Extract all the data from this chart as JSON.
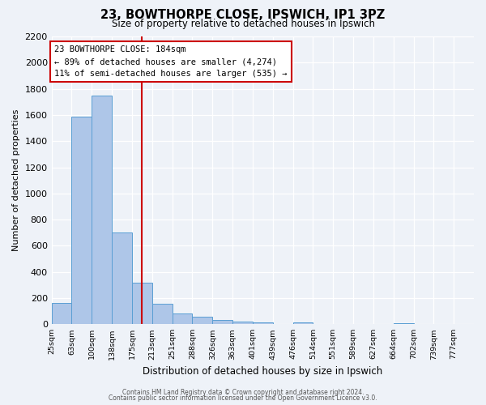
{
  "title": "23, BOWTHORPE CLOSE, IPSWICH, IP1 3PZ",
  "subtitle": "Size of property relative to detached houses in Ipswich",
  "xlabel": "Distribution of detached houses by size in Ipswich",
  "ylabel": "Number of detached properties",
  "bar_labels": [
    "25sqm",
    "63sqm",
    "100sqm",
    "138sqm",
    "175sqm",
    "213sqm",
    "251sqm",
    "288sqm",
    "326sqm",
    "363sqm",
    "401sqm",
    "439sqm",
    "476sqm",
    "514sqm",
    "551sqm",
    "589sqm",
    "627sqm",
    "664sqm",
    "702sqm",
    "739sqm",
    "777sqm"
  ],
  "bar_values": [
    160,
    1590,
    1750,
    700,
    320,
    155,
    85,
    55,
    30,
    20,
    15,
    0,
    12,
    0,
    0,
    0,
    0,
    10,
    0,
    0,
    0
  ],
  "bar_color": "#aec6e8",
  "bar_edgecolor": "#5a9fd4",
  "vline_pos": 4.5,
  "vline_color": "#cc0000",
  "annotation_title": "23 BOWTHORPE CLOSE: 184sqm",
  "annotation_line1": "← 89% of detached houses are smaller (4,274)",
  "annotation_line2": "11% of semi-detached houses are larger (535) →",
  "annotation_box_edgecolor": "#cc0000",
  "ylim": [
    0,
    2200
  ],
  "yticks": [
    0,
    200,
    400,
    600,
    800,
    1000,
    1200,
    1400,
    1600,
    1800,
    2000,
    2200
  ],
  "footer1": "Contains HM Land Registry data © Crown copyright and database right 2024.",
  "footer2": "Contains public sector information licensed under the Open Government Licence v3.0.",
  "bg_color": "#eef2f8",
  "grid_color": "#ffffff"
}
